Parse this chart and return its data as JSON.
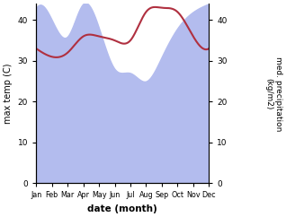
{
  "months": [
    "Jan",
    "Feb",
    "Mar",
    "Apr",
    "May",
    "Jun",
    "Jul",
    "Aug",
    "Sep",
    "Oct",
    "Nov",
    "Dec"
  ],
  "month_indices": [
    0,
    1,
    2,
    3,
    4,
    5,
    6,
    7,
    8,
    9,
    10,
    11
  ],
  "precipitation": [
    43,
    40,
    36,
    44,
    38,
    28,
    27,
    25,
    31,
    38,
    42,
    44
  ],
  "temperature": [
    33,
    31,
    32,
    36,
    36,
    35,
    35,
    42,
    43,
    42,
    36,
    33
  ],
  "precip_color": "#b3bcee",
  "temp_color": "#b03040",
  "ylim_left": [
    0,
    44
  ],
  "ylim_right": [
    0,
    44
  ],
  "yticks_left": [
    0,
    10,
    20,
    30,
    40
  ],
  "yticks_right": [
    0,
    10,
    20,
    30,
    40
  ],
  "xlabel": "date (month)",
  "ylabel_left": "max temp (C)",
  "ylabel_right": "med. precipitation\n(kg/m2)",
  "bg_color": "#ffffff"
}
